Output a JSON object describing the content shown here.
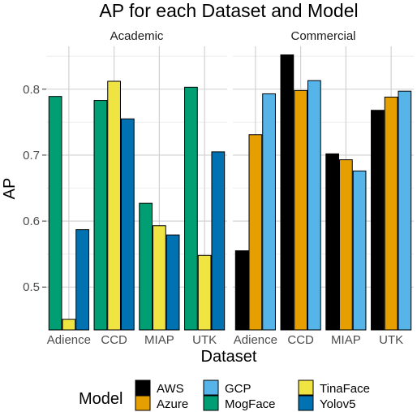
{
  "chart_data": {
    "type": "bar",
    "title": "AP for each Dataset and Model",
    "xlabel": "Dataset",
    "ylabel": "AP",
    "ylim": [
      0.435,
      0.865
    ],
    "yticks": [
      0.5,
      0.6,
      0.7,
      0.8
    ],
    "grid": true,
    "legend": {
      "title": "Model",
      "placement": "bottom",
      "entries": [
        {
          "name": "AWS",
          "color": "#000000"
        },
        {
          "name": "Azure",
          "color": "#E69F00"
        },
        {
          "name": "GCP",
          "color": "#56B4E9"
        },
        {
          "name": "MogFace",
          "color": "#009E73"
        },
        {
          "name": "TinaFace",
          "color": "#F0E442"
        },
        {
          "name": "Yolov5",
          "color": "#0072B2"
        }
      ]
    },
    "facets": [
      {
        "label": "Academic",
        "categories": [
          "Adience",
          "CCD",
          "MIAP",
          "UTK"
        ],
        "series": [
          {
            "name": "MogFace",
            "color": "#009E73",
            "values": [
              0.789,
              0.783,
              0.627,
              0.803
            ]
          },
          {
            "name": "TinaFace",
            "color": "#F0E442",
            "values": [
              0.451,
              0.812,
              0.593,
              0.548
            ]
          },
          {
            "name": "Yolov5",
            "color": "#0072B2",
            "values": [
              0.587,
              0.755,
              0.579,
              0.705
            ]
          }
        ]
      },
      {
        "label": "Commercial",
        "categories": [
          "Adience",
          "CCD",
          "MIAP",
          "UTK"
        ],
        "series": [
          {
            "name": "AWS",
            "color": "#000000",
            "values": [
              0.555,
              0.852,
              0.702,
              0.768
            ]
          },
          {
            "name": "Azure",
            "color": "#E69F00",
            "values": [
              0.731,
              0.798,
              0.693,
              0.788
            ]
          },
          {
            "name": "GCP",
            "color": "#56B4E9",
            "values": [
              0.793,
              0.813,
              0.676,
              0.797
            ]
          }
        ]
      }
    ]
  }
}
